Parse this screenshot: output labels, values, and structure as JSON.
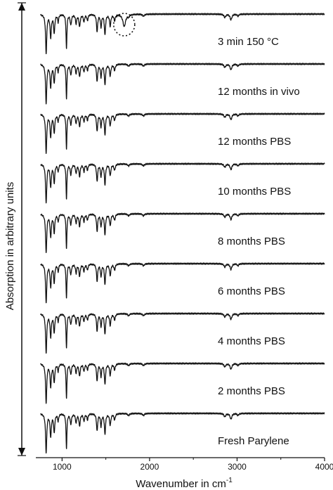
{
  "chart_data": {
    "type": "line",
    "xlabel": "Wavenumber in cm",
    "xlabel_sup": "-1",
    "ylabel": "Absorption in arbitrary units",
    "xlim": [
      700,
      4000
    ],
    "xticks": [
      1000,
      2000,
      3000,
      4000
    ],
    "xtick_labels": [
      "1000",
      "2000",
      "3000",
      "4000"
    ],
    "grid": false,
    "legend": "none",
    "annotation": "dotted circle highlighting a band near 1700 cm-1 in the 3 min 150 °C spectrum",
    "annotation_x": 1710,
    "series": [
      {
        "name": "3 min 150 °C",
        "oxidized": true
      },
      {
        "name": "12 months in vivo"
      },
      {
        "name": "12 months PBS"
      },
      {
        "name": "10 months PBS"
      },
      {
        "name": "8 months PBS"
      },
      {
        "name": "6 months PBS"
      },
      {
        "name": "4 months PBS"
      },
      {
        "name": "2 months PBS"
      },
      {
        "name": "Fresh Parylene"
      }
    ],
    "bands": [
      {
        "x": 818,
        "depth": 0.95,
        "width": 8
      },
      {
        "x": 870,
        "depth": 0.55,
        "width": 9
      },
      {
        "x": 910,
        "depth": 0.45,
        "width": 8
      },
      {
        "x": 955,
        "depth": 0.18,
        "width": 7
      },
      {
        "x": 1050,
        "depth": 0.85,
        "width": 6
      },
      {
        "x": 1100,
        "depth": 0.25,
        "width": 9
      },
      {
        "x": 1160,
        "depth": 0.22,
        "width": 8
      },
      {
        "x": 1200,
        "depth": 0.3,
        "width": 9
      },
      {
        "x": 1250,
        "depth": 0.18,
        "width": 8
      },
      {
        "x": 1290,
        "depth": 0.15,
        "width": 8
      },
      {
        "x": 1400,
        "depth": 0.42,
        "width": 8
      },
      {
        "x": 1445,
        "depth": 0.3,
        "width": 8
      },
      {
        "x": 1490,
        "depth": 0.5,
        "width": 8
      },
      {
        "x": 1550,
        "depth": 0.28,
        "width": 9
      },
      {
        "x": 1600,
        "depth": 0.15,
        "width": 9
      },
      {
        "x": 1760,
        "depth": 0.05,
        "width": 12
      },
      {
        "x": 1930,
        "depth": 0.05,
        "width": 12
      },
      {
        "x": 2860,
        "depth": 0.08,
        "width": 12
      },
      {
        "x": 2930,
        "depth": 0.14,
        "width": 12
      },
      {
        "x": 3010,
        "depth": 0.05,
        "width": 10
      }
    ],
    "oxidation_band": {
      "x": 1710,
      "depth": 0.3,
      "width": 18
    }
  }
}
